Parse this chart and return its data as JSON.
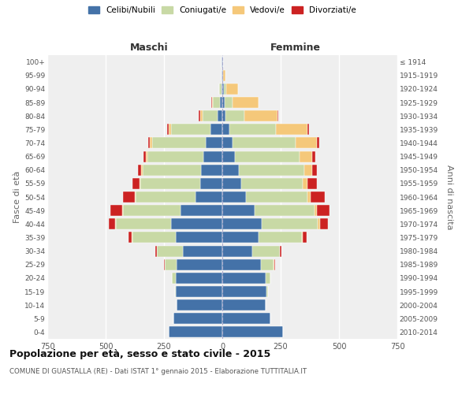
{
  "age_groups": [
    "0-4",
    "5-9",
    "10-14",
    "15-19",
    "20-24",
    "25-29",
    "30-34",
    "35-39",
    "40-44",
    "45-49",
    "50-54",
    "55-59",
    "60-64",
    "65-69",
    "70-74",
    "75-79",
    "80-84",
    "85-89",
    "90-94",
    "95-99",
    "100+"
  ],
  "birth_years": [
    "2010-2014",
    "2005-2009",
    "2000-2004",
    "1995-1999",
    "1990-1994",
    "1985-1989",
    "1980-1984",
    "1975-1979",
    "1970-1974",
    "1965-1969",
    "1960-1964",
    "1955-1959",
    "1950-1954",
    "1945-1949",
    "1940-1944",
    "1935-1939",
    "1930-1934",
    "1925-1929",
    "1920-1924",
    "1915-1919",
    "≤ 1914"
  ],
  "male": {
    "celibi": [
      230,
      210,
      195,
      200,
      200,
      195,
      170,
      200,
      220,
      180,
      115,
      95,
      90,
      80,
      70,
      50,
      20,
      10,
      5,
      2,
      2
    ],
    "coniugati": [
      0,
      0,
      0,
      2,
      15,
      50,
      110,
      185,
      235,
      245,
      255,
      255,
      250,
      240,
      230,
      170,
      65,
      30,
      8,
      2,
      0
    ],
    "vedovi": [
      0,
      0,
      0,
      0,
      0,
      0,
      2,
      2,
      3,
      5,
      5,
      5,
      8,
      8,
      10,
      10,
      10,
      5,
      2,
      0,
      0
    ],
    "divorziati": [
      0,
      0,
      0,
      0,
      2,
      5,
      5,
      15,
      30,
      50,
      50,
      30,
      15,
      10,
      8,
      5,
      5,
      2,
      0,
      0,
      0
    ]
  },
  "female": {
    "nubili": [
      260,
      205,
      185,
      190,
      185,
      165,
      130,
      155,
      170,
      140,
      100,
      80,
      70,
      55,
      45,
      30,
      15,
      10,
      8,
      3,
      2
    ],
    "coniugate": [
      0,
      0,
      0,
      5,
      20,
      55,
      115,
      185,
      240,
      255,
      265,
      265,
      280,
      275,
      270,
      200,
      80,
      35,
      10,
      2,
      0
    ],
    "vedove": [
      0,
      0,
      0,
      0,
      0,
      2,
      2,
      5,
      8,
      10,
      15,
      20,
      35,
      55,
      90,
      135,
      140,
      110,
      50,
      10,
      2
    ],
    "divorziate": [
      0,
      0,
      0,
      0,
      2,
      5,
      8,
      15,
      35,
      55,
      60,
      40,
      20,
      15,
      10,
      5,
      5,
      2,
      0,
      0,
      0
    ]
  },
  "colors": {
    "celibi": "#4472a8",
    "coniugati": "#c8d9a5",
    "vedovi": "#f5c87a",
    "divorziati": "#cc2222"
  },
  "title": "Popolazione per età, sesso e stato civile - 2015",
  "subtitle": "COMUNE DI GUASTALLA (RE) - Dati ISTAT 1° gennaio 2015 - Elaborazione TUTTITALIA.IT",
  "xlabel_left": "Maschi",
  "xlabel_right": "Femmine",
  "ylabel_left": "Fasce di età",
  "ylabel_right": "Anni di nascita",
  "xlim": 750,
  "bg_color": "#efefef",
  "legend_labels": [
    "Celibi/Nubili",
    "Coniugati/e",
    "Vedovi/e",
    "Divorziati/e"
  ]
}
